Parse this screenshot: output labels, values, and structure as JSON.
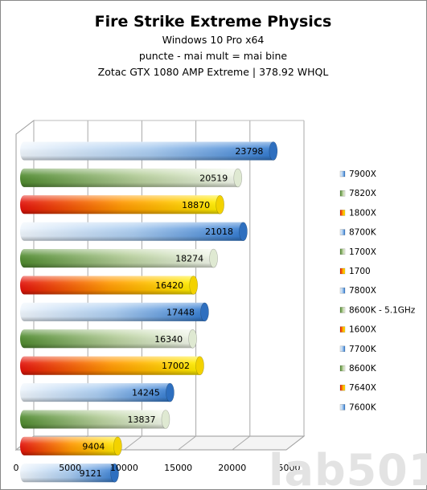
{
  "chart_data": {
    "type": "bar",
    "orientation": "horizontal",
    "title": "Fire Strike Extreme Physics",
    "subtitles": [
      "Windows 10 Pro  x64",
      "puncte - mai mult = mai bine",
      "Zotac GTX 1080 AMP  Extreme   | 378.92 WHQL"
    ],
    "xlim": [
      0,
      25000
    ],
    "xticks": [
      "0",
      "5000",
      "10000",
      "15000",
      "20000",
      "25000"
    ],
    "grid": true,
    "legend_position": "right",
    "series": [
      {
        "name": "7900X",
        "value": 23798,
        "color": "blue"
      },
      {
        "name": "7820X",
        "value": 20519,
        "color": "green"
      },
      {
        "name": "1800X",
        "value": 18870,
        "color": "orange"
      },
      {
        "name": "8700K",
        "value": 21018,
        "color": "blue"
      },
      {
        "name": "1700X",
        "value": 18274,
        "color": "green"
      },
      {
        "name": "1700",
        "value": 16420,
        "color": "orange"
      },
      {
        "name": "7800X",
        "value": 17448,
        "color": "blue"
      },
      {
        "name": "8600K - 5.1GHz",
        "value": 16340,
        "color": "green"
      },
      {
        "name": "1600X",
        "value": 17002,
        "color": "orange"
      },
      {
        "name": "7700K",
        "value": 14245,
        "color": "blue"
      },
      {
        "name": "8600K",
        "value": 13837,
        "color": "green"
      },
      {
        "name": "7640X",
        "value": 9404,
        "color": "orange"
      },
      {
        "name": "7600K",
        "value": 9121,
        "color": "blue"
      }
    ]
  },
  "watermark": "lab501",
  "colors": {
    "blue_light": "#ddeaf7",
    "blue_dark": "#3a7fd0",
    "green_light": "#eaf2df",
    "green_dark": "#5c8a38",
    "orange_dark": "#e8180a",
    "orange_mid": "#ff9a00",
    "orange_light": "#ffe600"
  }
}
